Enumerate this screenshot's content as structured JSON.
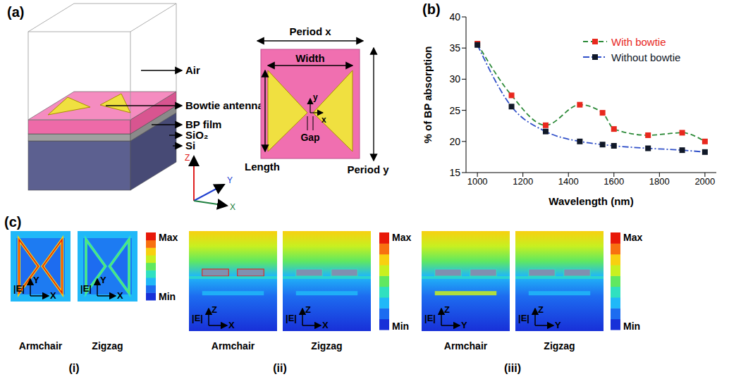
{
  "panel_a": {
    "panel_label": "(a)",
    "layers": [
      "Air",
      "Bowtie antenna",
      "BP film",
      "SiO₂",
      "Si"
    ],
    "axes": [
      "Z",
      "Y",
      "X"
    ],
    "top_view": {
      "period_x": "Period x",
      "period_y": "Period y",
      "width": "Width",
      "length": "Length",
      "gap": "Gap",
      "axes": [
        "y",
        "x"
      ]
    }
  },
  "chart_data": {
    "panel_label": "(b)",
    "type": "line",
    "y_label": "% of BP absorption",
    "x_label": "Wavelength (nm)",
    "x": [
      1000,
      1150,
      1300,
      1450,
      1550,
      1600,
      1750,
      1900,
      2000
    ],
    "xlim": [
      950,
      2050
    ],
    "xticks": [
      1000,
      1200,
      1400,
      1600,
      1800,
      2000
    ],
    "ylim": [
      15,
      40
    ],
    "yticks": [
      15,
      20,
      25,
      30,
      35,
      40
    ],
    "legend": "upper right",
    "series": [
      {
        "name": "With bowtie",
        "color": "#e8281e",
        "marker": "square",
        "line_style": "dashed",
        "values": [
          35.7,
          27.4,
          22.6,
          25.9,
          24.6,
          22.0,
          21.0,
          21.4,
          20.0
        ]
      },
      {
        "name": "Without bowtie",
        "color": "#101828",
        "marker": "square",
        "line_style": "dashdot",
        "values": [
          35.5,
          25.6,
          21.6,
          20.0,
          19.5,
          19.3,
          18.9,
          18.6,
          18.3
        ]
      }
    ]
  },
  "panel_c": {
    "panel_label": "(c)",
    "field_label": "|E|",
    "colorbar": {
      "max": "Max",
      "min": "Min"
    },
    "maps": [
      {
        "label": "(i)",
        "axes": [
          "X",
          "Y"
        ],
        "orientations": [
          "Armchair",
          "Zigzag"
        ]
      },
      {
        "label": "(ii)",
        "axes": [
          "X",
          "Z"
        ],
        "orientations": [
          "Armchair",
          "Zigzag"
        ]
      },
      {
        "label": "(iii)",
        "axes": [
          "Y",
          "Z"
        ],
        "orientations": [
          "Armchair",
          "Zigzag"
        ]
      }
    ]
  }
}
